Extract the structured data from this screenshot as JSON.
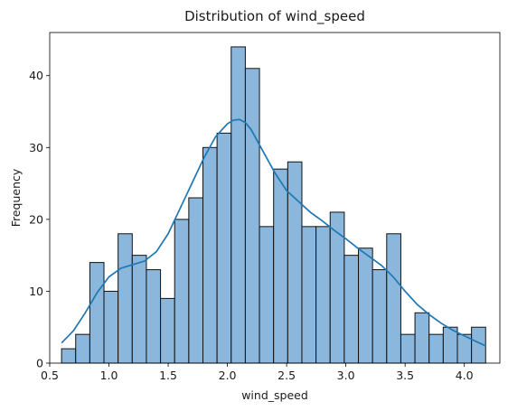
{
  "chart_data": {
    "type": "bar",
    "subtype": "histogram",
    "title": "Distribution of wind_speed",
    "xlabel": "wind_speed",
    "ylabel": "Frequency",
    "xlim": [
      0.5,
      4.3
    ],
    "ylim": [
      0,
      46
    ],
    "xticks": [
      "0.5",
      "1.0",
      "1.5",
      "2.0",
      "2.5",
      "3.0",
      "3.5",
      "4.0"
    ],
    "yticks": [
      "0",
      "10",
      "20",
      "30",
      "40"
    ],
    "bins": {
      "start": 0.6,
      "end": 4.18,
      "counts": [
        2,
        4,
        14,
        10,
        18,
        15,
        13,
        9,
        20,
        23,
        30,
        32,
        44,
        41,
        19,
        27,
        28,
        19,
        19,
        21,
        15,
        16,
        13,
        18,
        4,
        7,
        4,
        5,
        4,
        5
      ]
    },
    "kde": {
      "x": [
        0.6,
        0.7,
        0.8,
        0.9,
        1.0,
        1.1,
        1.2,
        1.3,
        1.4,
        1.5,
        1.6,
        1.7,
        1.8,
        1.9,
        2.0,
        2.05,
        2.1,
        2.15,
        2.2,
        2.3,
        2.4,
        2.5,
        2.6,
        2.7,
        2.8,
        2.9,
        3.0,
        3.1,
        3.2,
        3.3,
        3.4,
        3.5,
        3.6,
        3.7,
        3.8,
        3.9,
        4.0,
        4.1,
        4.18
      ],
      "y": [
        2.8,
        4.5,
        7.0,
        9.8,
        12.0,
        13.2,
        13.7,
        14.2,
        15.5,
        18.0,
        21.5,
        25.0,
        28.5,
        31.5,
        33.3,
        33.8,
        33.9,
        33.5,
        32.5,
        29.5,
        26.5,
        24.0,
        22.5,
        21.0,
        19.8,
        18.5,
        17.3,
        16.0,
        14.8,
        13.6,
        12.0,
        10.0,
        8.2,
        6.8,
        5.6,
        4.6,
        3.8,
        3.0,
        2.4
      ]
    },
    "bar_color": "#8ab7db",
    "bar_edge_color": "#111111",
    "kde_color": "#1f77b4",
    "grid": false,
    "legend": "none"
  }
}
